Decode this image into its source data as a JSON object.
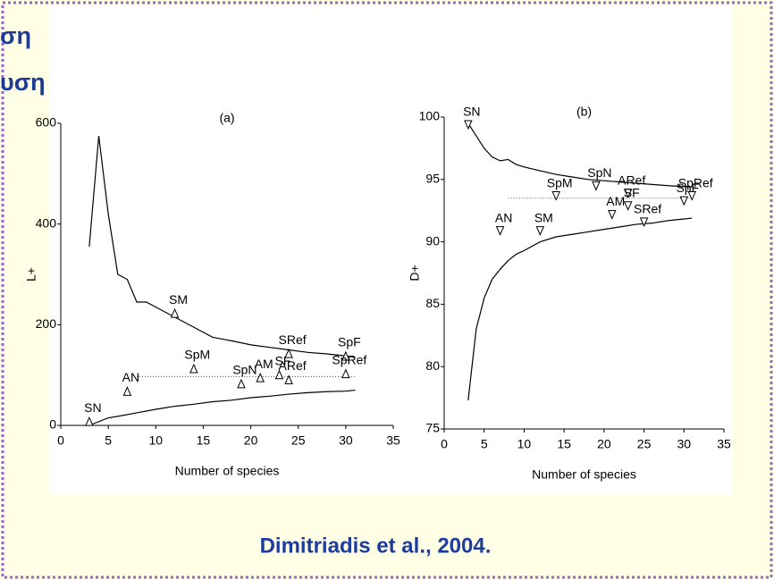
{
  "slide": {
    "heading": [
      "ση",
      "υση"
    ],
    "citation": "Dimitriadis et al., 2004."
  },
  "chart_data": [
    {
      "type": "funnel",
      "title": "(a)",
      "x_label": "Number of species",
      "y_label": "L+",
      "xlim": [
        0,
        35
      ],
      "xticks": [
        0,
        5,
        10,
        15,
        20,
        25,
        30,
        35
      ],
      "ylim": [
        0,
        600
      ],
      "yticks": [
        0,
        200,
        400,
        600
      ],
      "marker": "triangle-up",
      "mean": 97,
      "points": {
        "labels": [
          "SN",
          "AN",
          "SM",
          "SpM",
          "SpN",
          "AM",
          "SF",
          "ARef",
          "SRef",
          "SpF",
          "SpRef"
        ],
        "x": [
          3,
          7,
          12,
          14,
          19,
          21,
          23,
          24,
          24,
          30,
          30
        ],
        "y": [
          5,
          65,
          220,
          110,
          80,
          92,
          98,
          88,
          140,
          135,
          100
        ]
      },
      "upper": {
        "x": [
          3,
          4,
          5,
          6,
          7,
          8,
          9,
          10,
          12,
          14,
          16,
          18,
          20,
          22,
          24,
          26,
          28,
          30,
          31
        ],
        "values": [
          355,
          575,
          420,
          300,
          290,
          245,
          245,
          235,
          215,
          195,
          175,
          168,
          160,
          155,
          150,
          145,
          142,
          138,
          135
        ]
      },
      "lower": {
        "x": [
          3,
          5,
          6,
          8,
          10,
          12,
          14,
          16,
          18,
          20,
          22,
          24,
          26,
          28,
          30,
          31
        ],
        "values": [
          0,
          15,
          18,
          25,
          32,
          38,
          42,
          47,
          50,
          55,
          58,
          62,
          65,
          67,
          68,
          70
        ]
      }
    },
    {
      "type": "funnel",
      "title": "(b)",
      "x_label": "Number of species",
      "y_label": "D+",
      "xlim": [
        0,
        35
      ],
      "xticks": [
        0,
        5,
        10,
        15,
        20,
        25,
        30,
        35
      ],
      "ylim": [
        75,
        100
      ],
      "yticks": [
        75,
        80,
        85,
        90,
        95,
        100
      ],
      "marker": "triangle-down",
      "mean": 93.5,
      "points": {
        "labels": [
          "SN",
          "AN",
          "SM",
          "SpM",
          "SpN",
          "AM",
          "ARef",
          "SF",
          "SRef",
          "SpF",
          "SpRef"
        ],
        "x": [
          3,
          7,
          12,
          14,
          19,
          21,
          23,
          23,
          25,
          30,
          31
        ],
        "y": [
          99.5,
          91,
          91,
          93.8,
          94.6,
          92.3,
          94,
          93,
          91.7,
          93.4,
          93.8
        ]
      },
      "upper": {
        "x": [
          3,
          4,
          5,
          6,
          7,
          8,
          9,
          10,
          12,
          14,
          16,
          18,
          20,
          22,
          24,
          26,
          28,
          31
        ],
        "values": [
          99.5,
          98.5,
          97.5,
          96.8,
          96.5,
          96.6,
          96.2,
          96,
          95.7,
          95.4,
          95.2,
          95,
          94.9,
          94.8,
          94.7,
          94.6,
          94.5,
          94.4
        ]
      },
      "lower": {
        "x": [
          3,
          4,
          5,
          6,
          7,
          8,
          9,
          10,
          12,
          14,
          16,
          18,
          20,
          22,
          24,
          26,
          28,
          31
        ],
        "values": [
          77.3,
          83,
          85.5,
          87,
          87.8,
          88.5,
          89,
          89.3,
          90,
          90.4,
          90.6,
          90.8,
          91,
          91.2,
          91.4,
          91.5,
          91.7,
          91.9
        ]
      }
    }
  ]
}
